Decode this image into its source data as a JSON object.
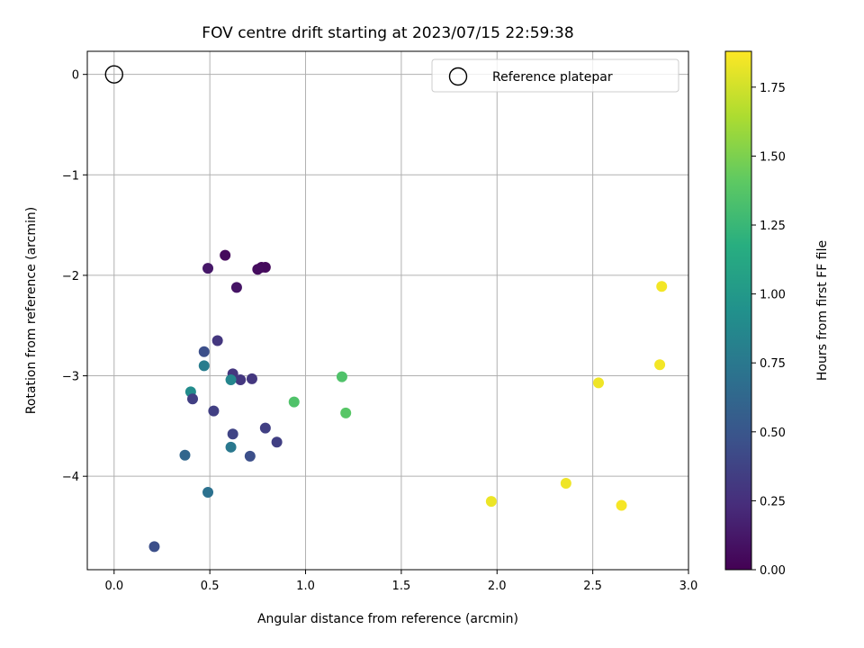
{
  "chart_data": {
    "type": "scatter",
    "title": "FOV centre drift starting at 2023/07/15 22:59:38",
    "xlabel": "Angular distance from reference (arcmin)",
    "ylabel": "Rotation from reference (arcmin)",
    "colorbar_label": "Hours from first FF file",
    "xlim": [
      -0.14,
      3.0
    ],
    "ylim": [
      -4.93,
      0.23
    ],
    "x_ticks": [
      "0.0",
      "0.5",
      "1.0",
      "1.5",
      "2.0",
      "2.5",
      "3.0"
    ],
    "x_tick_values": [
      0,
      0.5,
      1.0,
      1.5,
      2.0,
      2.5,
      3.0
    ],
    "y_ticks": [
      "0",
      "−1",
      "−2",
      "−3",
      "−4"
    ],
    "y_tick_values": [
      0,
      -1,
      -2,
      -3,
      -4
    ],
    "colorbar_range": [
      0,
      1.88
    ],
    "colorbar_ticks": [
      "0.00",
      "0.25",
      "0.50",
      "0.75",
      "1.00",
      "1.25",
      "1.50",
      "1.75"
    ],
    "colorbar_tick_values": [
      0,
      0.25,
      0.5,
      0.75,
      1.0,
      1.25,
      1.5,
      1.75
    ],
    "colormap": "viridis",
    "grid": true,
    "legend": {
      "placement": "top-right",
      "entries": [
        "Reference platepar"
      ]
    },
    "reference_point": {
      "x": 0.0,
      "y": 0.0
    },
    "points": [
      {
        "x": 0.58,
        "y": -1.8,
        "c": 0.05
      },
      {
        "x": 0.77,
        "y": -1.92,
        "c": 0.04
      },
      {
        "x": 0.79,
        "y": -1.92,
        "c": 0.05
      },
      {
        "x": 0.75,
        "y": -1.94,
        "c": 0.06
      },
      {
        "x": 0.49,
        "y": -1.93,
        "c": 0.12
      },
      {
        "x": 0.64,
        "y": -2.12,
        "c": 0.1
      },
      {
        "x": 0.54,
        "y": -2.65,
        "c": 0.3
      },
      {
        "x": 0.47,
        "y": -2.76,
        "c": 0.45
      },
      {
        "x": 0.62,
        "y": -2.98,
        "c": 0.3
      },
      {
        "x": 0.66,
        "y": -3.04,
        "c": 0.3
      },
      {
        "x": 0.72,
        "y": -3.03,
        "c": 0.3
      },
      {
        "x": 0.47,
        "y": -2.9,
        "c": 0.78
      },
      {
        "x": 0.61,
        "y": -3.04,
        "c": 0.86
      },
      {
        "x": 0.4,
        "y": -3.16,
        "c": 0.9
      },
      {
        "x": 0.41,
        "y": -3.23,
        "c": 0.35
      },
      {
        "x": 0.52,
        "y": -3.35,
        "c": 0.35
      },
      {
        "x": 0.79,
        "y": -3.52,
        "c": 0.35
      },
      {
        "x": 0.62,
        "y": -3.58,
        "c": 0.38
      },
      {
        "x": 0.85,
        "y": -3.66,
        "c": 0.35
      },
      {
        "x": 0.61,
        "y": -3.71,
        "c": 0.75
      },
      {
        "x": 0.37,
        "y": -3.79,
        "c": 0.62
      },
      {
        "x": 0.71,
        "y": -3.8,
        "c": 0.45
      },
      {
        "x": 0.49,
        "y": -4.16,
        "c": 0.7
      },
      {
        "x": 0.21,
        "y": -4.7,
        "c": 0.45
      },
      {
        "x": 0.94,
        "y": -3.26,
        "c": 1.35
      },
      {
        "x": 1.19,
        "y": -3.01,
        "c": 1.35
      },
      {
        "x": 1.21,
        "y": -3.37,
        "c": 1.38
      },
      {
        "x": 2.86,
        "y": -2.11,
        "c": 1.85
      },
      {
        "x": 2.85,
        "y": -2.89,
        "c": 1.85
      },
      {
        "x": 2.53,
        "y": -3.07,
        "c": 1.84
      },
      {
        "x": 1.97,
        "y": -4.25,
        "c": 1.83
      },
      {
        "x": 2.36,
        "y": -4.07,
        "c": 1.84
      },
      {
        "x": 2.65,
        "y": -4.29,
        "c": 1.86
      }
    ]
  }
}
